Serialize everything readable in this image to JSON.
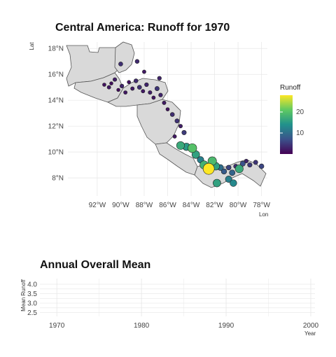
{
  "chart_data": [
    {
      "type": "scatter",
      "title": "Central America: Runoff for 1970",
      "xlabel": "Lon",
      "ylabel": "Lat",
      "xlim": [
        -94.5,
        -77.5
      ],
      "ylim": [
        6.6,
        18.5
      ],
      "x_ticks": [
        {
          "value": -92,
          "label": "92°W"
        },
        {
          "value": -90,
          "label": "90°W"
        },
        {
          "value": -88,
          "label": "88°W"
        },
        {
          "value": -86,
          "label": "86°W"
        },
        {
          "value": -84,
          "label": "84°W"
        },
        {
          "value": -82,
          "label": "82°W"
        },
        {
          "value": -80,
          "label": "80°W"
        },
        {
          "value": -78,
          "label": "78°W"
        }
      ],
      "y_ticks": [
        {
          "value": 8,
          "label": "8°N"
        },
        {
          "value": 10,
          "label": "10°N"
        },
        {
          "value": 12,
          "label": "12°N"
        },
        {
          "value": 14,
          "label": "14°N"
        },
        {
          "value": 16,
          "label": "16°N"
        },
        {
          "value": 18,
          "label": "18°N"
        }
      ],
      "grid": true,
      "legend": {
        "title": "Runoff",
        "placement": "right",
        "range": [
          0,
          28
        ],
        "ticks": [
          {
            "value": 10,
            "label": "10"
          },
          {
            "value": 20,
            "label": "20"
          }
        ],
        "colormap": "viridis"
      },
      "points": [
        {
          "lon": -91.4,
          "lat": 15.2,
          "runoff": 1.5
        },
        {
          "lon": -91.0,
          "lat": 15.0,
          "runoff": 2.0
        },
        {
          "lon": -90.8,
          "lat": 15.3,
          "runoff": 1.2
        },
        {
          "lon": -90.5,
          "lat": 15.6,
          "runoff": 2.5
        },
        {
          "lon": -90.2,
          "lat": 14.8,
          "runoff": 1.0
        },
        {
          "lon": -89.9,
          "lat": 15.1,
          "runoff": 3.0
        },
        {
          "lon": -89.6,
          "lat": 14.6,
          "runoff": 2.0
        },
        {
          "lon": -89.3,
          "lat": 15.4,
          "runoff": 1.5
        },
        {
          "lon": -89.0,
          "lat": 14.9,
          "runoff": 2.2
        },
        {
          "lon": -88.7,
          "lat": 15.5,
          "runoff": 3.5
        },
        {
          "lon": -88.4,
          "lat": 15.0,
          "runoff": 4.0
        },
        {
          "lon": -88.1,
          "lat": 14.7,
          "runoff": 2.0
        },
        {
          "lon": -87.8,
          "lat": 15.2,
          "runoff": 3.0
        },
        {
          "lon": -87.5,
          "lat": 14.6,
          "runoff": 2.5
        },
        {
          "lon": -87.2,
          "lat": 14.2,
          "runoff": 1.8
        },
        {
          "lon": -86.9,
          "lat": 14.9,
          "runoff": 4.5
        },
        {
          "lon": -86.6,
          "lat": 14.4,
          "runoff": 3.0
        },
        {
          "lon": -86.3,
          "lat": 13.8,
          "runoff": 2.2
        },
        {
          "lon": -86.0,
          "lat": 13.3,
          "runoff": 1.5
        },
        {
          "lon": -85.6,
          "lat": 12.9,
          "runoff": 3.8
        },
        {
          "lon": -85.2,
          "lat": 12.4,
          "runoff": 4.2
        },
        {
          "lon": -84.9,
          "lat": 12.0,
          "runoff": 2.5
        },
        {
          "lon": -84.6,
          "lat": 11.5,
          "runoff": 5.0
        },
        {
          "lon": -85.4,
          "lat": 11.2,
          "runoff": 2.0
        },
        {
          "lon": -84.9,
          "lat": 10.5,
          "runoff": 17.0
        },
        {
          "lon": -84.4,
          "lat": 10.4,
          "runoff": 15.0
        },
        {
          "lon": -83.9,
          "lat": 10.3,
          "runoff": 20.0
        },
        {
          "lon": -83.6,
          "lat": 9.8,
          "runoff": 16.0
        },
        {
          "lon": -83.2,
          "lat": 9.4,
          "runoff": 12.0
        },
        {
          "lon": -82.9,
          "lat": 9.0,
          "runoff": 18.0
        },
        {
          "lon": -82.6,
          "lat": 8.6,
          "runoff": 14.0
        },
        {
          "lon": -82.2,
          "lat": 9.3,
          "runoff": 19.0
        },
        {
          "lon": -81.9,
          "lat": 8.9,
          "runoff": 16.0
        },
        {
          "lon": -82.5,
          "lat": 8.7,
          "runoff": 28.0
        },
        {
          "lon": -81.5,
          "lat": 8.8,
          "runoff": 10.0
        },
        {
          "lon": -81.2,
          "lat": 8.5,
          "runoff": 8.0
        },
        {
          "lon": -80.8,
          "lat": 8.8,
          "runoff": 6.0
        },
        {
          "lon": -80.5,
          "lat": 8.4,
          "runoff": 9.0
        },
        {
          "lon": -80.2,
          "lat": 8.9,
          "runoff": 4.0
        },
        {
          "lon": -79.9,
          "lat": 8.7,
          "runoff": 17.0
        },
        {
          "lon": -79.6,
          "lat": 9.1,
          "runoff": 7.0
        },
        {
          "lon": -79.3,
          "lat": 9.3,
          "runoff": 3.0
        },
        {
          "lon": -79.0,
          "lat": 9.0,
          "runoff": 5.0
        },
        {
          "lon": -78.5,
          "lat": 9.2,
          "runoff": 4.5
        },
        {
          "lon": -78.0,
          "lat": 8.9,
          "runoff": 6.0
        },
        {
          "lon": -80.8,
          "lat": 7.9,
          "runoff": 12.0
        },
        {
          "lon": -80.4,
          "lat": 7.6,
          "runoff": 13.0
        },
        {
          "lon": -81.8,
          "lat": 7.6,
          "runoff": 16.0
        },
        {
          "lon": -90.0,
          "lat": 16.8,
          "runoff": 4.0
        },
        {
          "lon": -88.6,
          "lat": 17.0,
          "runoff": 3.5
        },
        {
          "lon": -88.0,
          "lat": 16.2,
          "runoff": 2.0
        },
        {
          "lon": -86.7,
          "lat": 15.7,
          "runoff": 3.0
        }
      ]
    },
    {
      "type": "line",
      "title": "Annual Overall Mean",
      "xlabel": "Year",
      "ylabel": "Mean Runoff",
      "xlim": [
        1968,
        2000.5
      ],
      "ylim": [
        2.3,
        4.3
      ],
      "x_ticks": [
        1970,
        1980,
        1990,
        2000
      ],
      "y_ticks": [
        2.5,
        3.0,
        3.5,
        4.0
      ],
      "y_tick_labels": [
        "2.5",
        "3.0",
        "3.5",
        "4.0"
      ],
      "grid": true,
      "series": []
    }
  ]
}
